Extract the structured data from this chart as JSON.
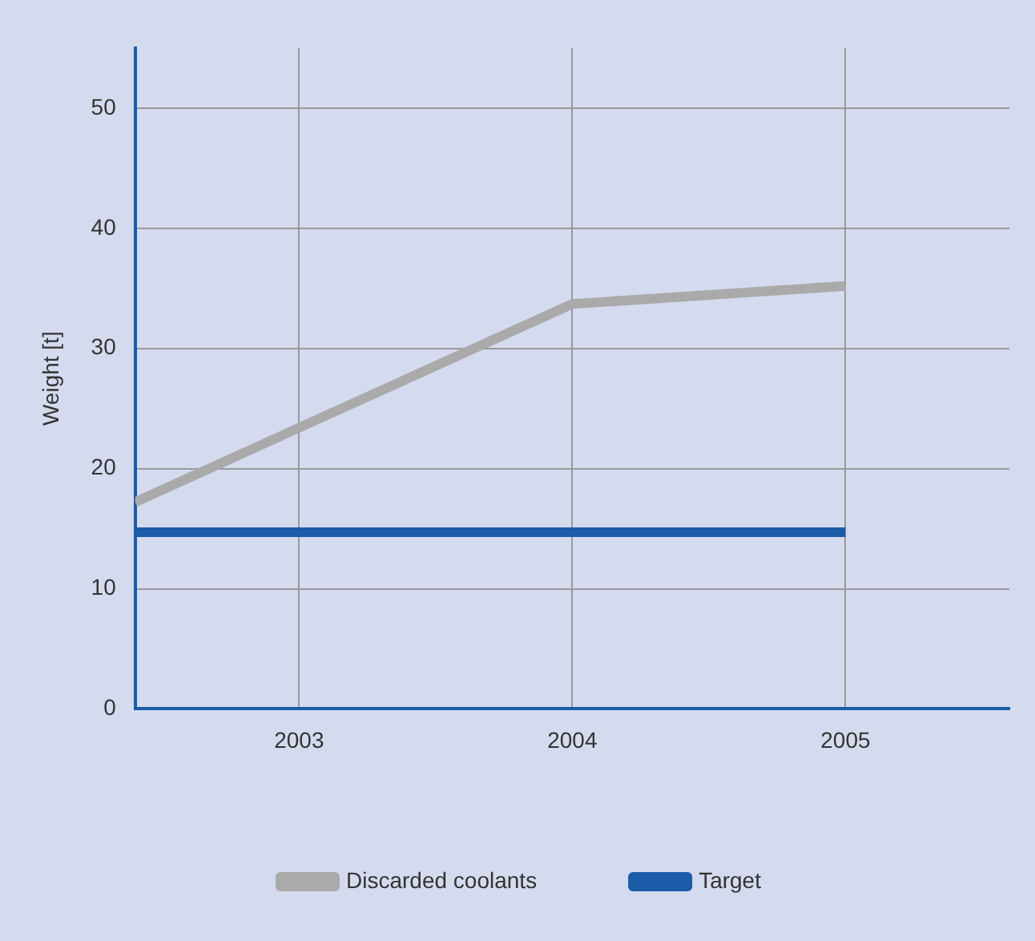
{
  "chart_data": {
    "type": "line",
    "ylabel": "Weight [t]",
    "xlim": [
      2002.4,
      2005.6
    ],
    "xticks": [
      2003,
      2004,
      2005
    ],
    "ylim": [
      0,
      55
    ],
    "yticks": [
      0,
      10,
      20,
      30,
      40,
      50
    ],
    "grid": true,
    "legend": "bottom",
    "marker": "none",
    "series": [
      {
        "name": "Discarded coolants",
        "color": "#aaaaaa",
        "x": [
          2002.4,
          2003,
          2004,
          2005
        ],
        "values": [
          17.2,
          23.4,
          33.7,
          35.2
        ]
      },
      {
        "name": "Target",
        "color": "#1a5ca8",
        "x": [
          2002.4,
          2005
        ],
        "values": [
          14.7,
          14.7
        ]
      }
    ]
  }
}
